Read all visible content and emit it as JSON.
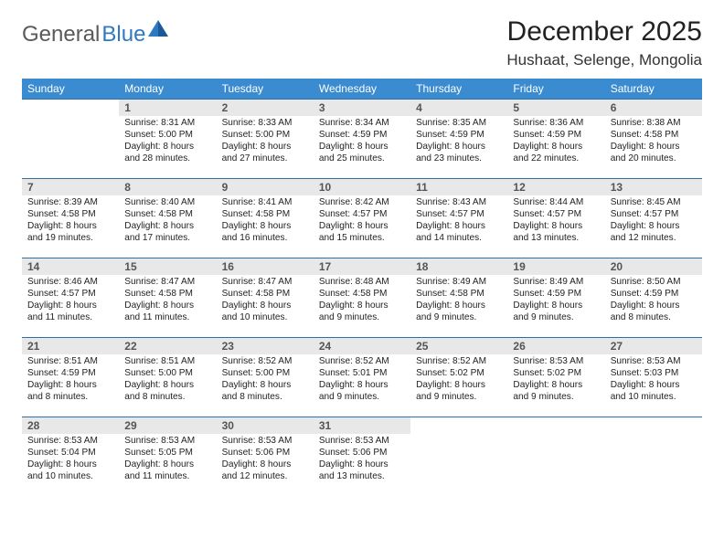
{
  "logo": {
    "part1": "General",
    "part2": "Blue"
  },
  "title": "December 2025",
  "location": "Hushaat, Selenge, Mongolia",
  "colors": {
    "header_bg": "#3b8bd0",
    "header_text": "#ffffff",
    "daynum_bg": "#e8e8e8",
    "cell_border": "#2f6fa8",
    "logo_gray": "#5a5a5a",
    "logo_blue": "#2f79c2"
  },
  "day_headers": [
    "Sunday",
    "Monday",
    "Tuesday",
    "Wednesday",
    "Thursday",
    "Friday",
    "Saturday"
  ],
  "weeks": [
    [
      {
        "n": "",
        "s": "",
        "u": "",
        "d": ""
      },
      {
        "n": "1",
        "s": "Sunrise: 8:31 AM",
        "u": "Sunset: 5:00 PM",
        "d": "Daylight: 8 hours and 28 minutes."
      },
      {
        "n": "2",
        "s": "Sunrise: 8:33 AM",
        "u": "Sunset: 5:00 PM",
        "d": "Daylight: 8 hours and 27 minutes."
      },
      {
        "n": "3",
        "s": "Sunrise: 8:34 AM",
        "u": "Sunset: 4:59 PM",
        "d": "Daylight: 8 hours and 25 minutes."
      },
      {
        "n": "4",
        "s": "Sunrise: 8:35 AM",
        "u": "Sunset: 4:59 PM",
        "d": "Daylight: 8 hours and 23 minutes."
      },
      {
        "n": "5",
        "s": "Sunrise: 8:36 AM",
        "u": "Sunset: 4:59 PM",
        "d": "Daylight: 8 hours and 22 minutes."
      },
      {
        "n": "6",
        "s": "Sunrise: 8:38 AM",
        "u": "Sunset: 4:58 PM",
        "d": "Daylight: 8 hours and 20 minutes."
      }
    ],
    [
      {
        "n": "7",
        "s": "Sunrise: 8:39 AM",
        "u": "Sunset: 4:58 PM",
        "d": "Daylight: 8 hours and 19 minutes."
      },
      {
        "n": "8",
        "s": "Sunrise: 8:40 AM",
        "u": "Sunset: 4:58 PM",
        "d": "Daylight: 8 hours and 17 minutes."
      },
      {
        "n": "9",
        "s": "Sunrise: 8:41 AM",
        "u": "Sunset: 4:58 PM",
        "d": "Daylight: 8 hours and 16 minutes."
      },
      {
        "n": "10",
        "s": "Sunrise: 8:42 AM",
        "u": "Sunset: 4:57 PM",
        "d": "Daylight: 8 hours and 15 minutes."
      },
      {
        "n": "11",
        "s": "Sunrise: 8:43 AM",
        "u": "Sunset: 4:57 PM",
        "d": "Daylight: 8 hours and 14 minutes."
      },
      {
        "n": "12",
        "s": "Sunrise: 8:44 AM",
        "u": "Sunset: 4:57 PM",
        "d": "Daylight: 8 hours and 13 minutes."
      },
      {
        "n": "13",
        "s": "Sunrise: 8:45 AM",
        "u": "Sunset: 4:57 PM",
        "d": "Daylight: 8 hours and 12 minutes."
      }
    ],
    [
      {
        "n": "14",
        "s": "Sunrise: 8:46 AM",
        "u": "Sunset: 4:57 PM",
        "d": "Daylight: 8 hours and 11 minutes."
      },
      {
        "n": "15",
        "s": "Sunrise: 8:47 AM",
        "u": "Sunset: 4:58 PM",
        "d": "Daylight: 8 hours and 11 minutes."
      },
      {
        "n": "16",
        "s": "Sunrise: 8:47 AM",
        "u": "Sunset: 4:58 PM",
        "d": "Daylight: 8 hours and 10 minutes."
      },
      {
        "n": "17",
        "s": "Sunrise: 8:48 AM",
        "u": "Sunset: 4:58 PM",
        "d": "Daylight: 8 hours and 9 minutes."
      },
      {
        "n": "18",
        "s": "Sunrise: 8:49 AM",
        "u": "Sunset: 4:58 PM",
        "d": "Daylight: 8 hours and 9 minutes."
      },
      {
        "n": "19",
        "s": "Sunrise: 8:49 AM",
        "u": "Sunset: 4:59 PM",
        "d": "Daylight: 8 hours and 9 minutes."
      },
      {
        "n": "20",
        "s": "Sunrise: 8:50 AM",
        "u": "Sunset: 4:59 PM",
        "d": "Daylight: 8 hours and 8 minutes."
      }
    ],
    [
      {
        "n": "21",
        "s": "Sunrise: 8:51 AM",
        "u": "Sunset: 4:59 PM",
        "d": "Daylight: 8 hours and 8 minutes."
      },
      {
        "n": "22",
        "s": "Sunrise: 8:51 AM",
        "u": "Sunset: 5:00 PM",
        "d": "Daylight: 8 hours and 8 minutes."
      },
      {
        "n": "23",
        "s": "Sunrise: 8:52 AM",
        "u": "Sunset: 5:00 PM",
        "d": "Daylight: 8 hours and 8 minutes."
      },
      {
        "n": "24",
        "s": "Sunrise: 8:52 AM",
        "u": "Sunset: 5:01 PM",
        "d": "Daylight: 8 hours and 9 minutes."
      },
      {
        "n": "25",
        "s": "Sunrise: 8:52 AM",
        "u": "Sunset: 5:02 PM",
        "d": "Daylight: 8 hours and 9 minutes."
      },
      {
        "n": "26",
        "s": "Sunrise: 8:53 AM",
        "u": "Sunset: 5:02 PM",
        "d": "Daylight: 8 hours and 9 minutes."
      },
      {
        "n": "27",
        "s": "Sunrise: 8:53 AM",
        "u": "Sunset: 5:03 PM",
        "d": "Daylight: 8 hours and 10 minutes."
      }
    ],
    [
      {
        "n": "28",
        "s": "Sunrise: 8:53 AM",
        "u": "Sunset: 5:04 PM",
        "d": "Daylight: 8 hours and 10 minutes."
      },
      {
        "n": "29",
        "s": "Sunrise: 8:53 AM",
        "u": "Sunset: 5:05 PM",
        "d": "Daylight: 8 hours and 11 minutes."
      },
      {
        "n": "30",
        "s": "Sunrise: 8:53 AM",
        "u": "Sunset: 5:06 PM",
        "d": "Daylight: 8 hours and 12 minutes."
      },
      {
        "n": "31",
        "s": "Sunrise: 8:53 AM",
        "u": "Sunset: 5:06 PM",
        "d": "Daylight: 8 hours and 13 minutes."
      },
      {
        "n": "",
        "s": "",
        "u": "",
        "d": ""
      },
      {
        "n": "",
        "s": "",
        "u": "",
        "d": ""
      },
      {
        "n": "",
        "s": "",
        "u": "",
        "d": ""
      }
    ]
  ]
}
